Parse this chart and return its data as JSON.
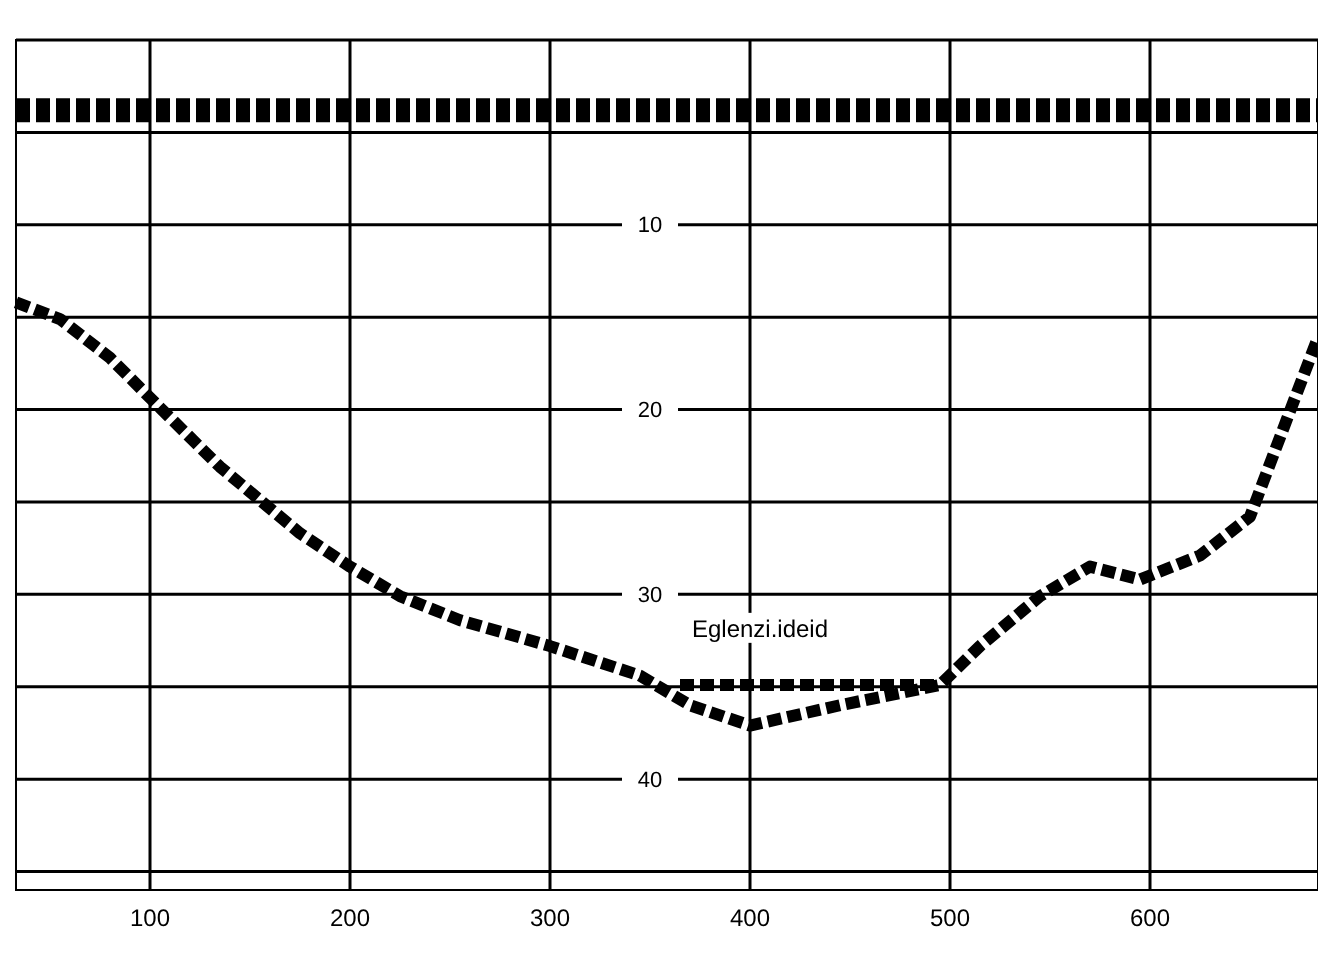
{
  "chart_data": {
    "type": "line",
    "xlim": [
      33,
      684
    ],
    "ylim": [
      46,
      0
    ],
    "xticks": [
      100,
      200,
      300,
      400,
      500,
      600
    ],
    "yticks": [
      {
        "value": 0,
        "label": null
      },
      {
        "value": 5,
        "label": null
      },
      10,
      {
        "value": 15,
        "label": null
      },
      20,
      {
        "value": 25,
        "label": null
      },
      30,
      {
        "value": 35,
        "label": null
      },
      40,
      {
        "value": 45,
        "label": null
      }
    ],
    "grid": true,
    "line_style": "dashed",
    "series": [
      {
        "color": "#000000",
        "x": [
          33,
          684
        ],
        "values": [
          3.8,
          3.8
        ]
      },
      {
        "color": "#000000",
        "x": [
          33,
          55,
          80,
          105,
          135,
          175,
          200,
          225,
          255,
          300,
          345,
          370,
          400,
          445,
          495,
          515,
          545,
          570,
          595,
          625,
          650,
          665,
          684
        ],
        "values": [
          14.2,
          15.1,
          17.2,
          19.9,
          23.1,
          26.7,
          28.5,
          30.1,
          31.4,
          32.8,
          34.4,
          36.0,
          37.1,
          36.0,
          34.9,
          32.8,
          30.1,
          28.5,
          29.2,
          27.9,
          25.8,
          21.5,
          16.1
        ]
      },
      {
        "color": "#000000",
        "x": [
          365,
          495
        ],
        "values": [
          34.9,
          34.9
        ]
      }
    ],
    "annotations": [
      "Eglenzi.ideid"
    ]
  }
}
